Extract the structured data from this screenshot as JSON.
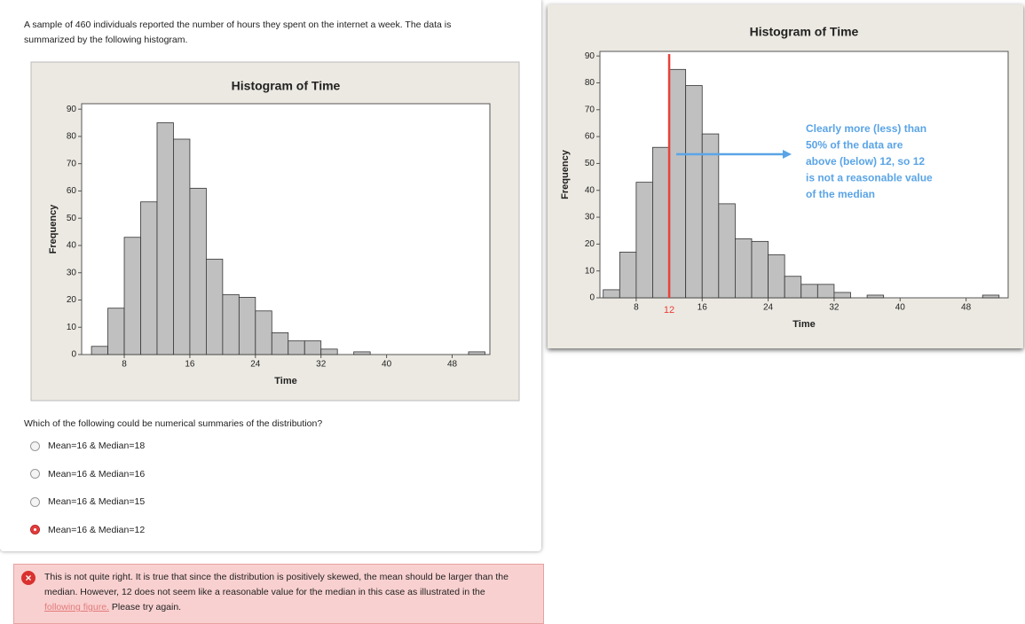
{
  "question": {
    "intro": "A sample of 460 individuals reported the number of hours they spent on the internet a week. The data is summarized by the following histogram.",
    "prompt": "Which of the following could be numerical summaries of the distribution?",
    "options": [
      "Mean=16 & Median=18",
      "Mean=16 & Median=16",
      "Mean=16 & Median=15",
      "Mean=16 & Median=12"
    ],
    "selected": 3
  },
  "feedback": {
    "before": "This is not quite right. It is true that since the distribution is positively skewed, the mean should be larger than the median. However, 12 does not seem like a reasonable value for the median in this case as illustrated in the ",
    "link": "following figure.",
    "after": " Please try again."
  },
  "chart_data": [
    {
      "type": "histogram",
      "title": "Histogram of Time",
      "x_label": "Time",
      "y_label": "Frequency",
      "color": "#c0c0c0",
      "bins": [
        4,
        6,
        8,
        10,
        12,
        14,
        16,
        18,
        20,
        22,
        24,
        26,
        28,
        30,
        32,
        34,
        36,
        38,
        40,
        42,
        44,
        46,
        48,
        50,
        52
      ],
      "values": [
        3,
        17,
        43,
        56,
        85,
        79,
        61,
        35,
        22,
        21,
        16,
        8,
        5,
        5,
        2,
        0,
        1,
        0,
        0,
        0,
        0,
        0,
        0,
        1
      ],
      "xlim": [
        2.8,
        52.6
      ],
      "ylim": [
        0,
        92
      ],
      "xticks": [
        8,
        16,
        24,
        32,
        40,
        48
      ],
      "yticks": [
        0,
        10,
        20,
        30,
        40,
        50,
        60,
        70,
        80,
        90
      ]
    },
    {
      "type": "histogram",
      "title": "Histogram of Time",
      "x_label": "Time",
      "y_label": "Frequency",
      "color": "#c0c0c0",
      "bins": [
        4,
        6,
        8,
        10,
        12,
        14,
        16,
        18,
        20,
        22,
        24,
        26,
        28,
        30,
        32,
        34,
        36,
        38,
        40,
        42,
        44,
        46,
        48,
        50,
        52
      ],
      "values": [
        3,
        17,
        43,
        56,
        85,
        79,
        61,
        35,
        22,
        21,
        16,
        8,
        5,
        5,
        2,
        0,
        1,
        0,
        0,
        0,
        0,
        0,
        0,
        1
      ],
      "xlim": [
        3.6,
        53.1
      ],
      "ylim": [
        0,
        91.7
      ],
      "xticks": [
        8,
        16,
        24,
        32,
        40,
        48
      ],
      "yticks": [
        0,
        10,
        20,
        30,
        40,
        50,
        60,
        70,
        80,
        90
      ],
      "marker": {
        "value": 12,
        "color": "#e8413a"
      },
      "annotation": [
        "Clearly more (less) than",
        "50% of the data are",
        "above (below) 12, so 12",
        "is not a reasonable value",
        "of the median"
      ],
      "annotation_color": "#5aa4e6"
    }
  ]
}
